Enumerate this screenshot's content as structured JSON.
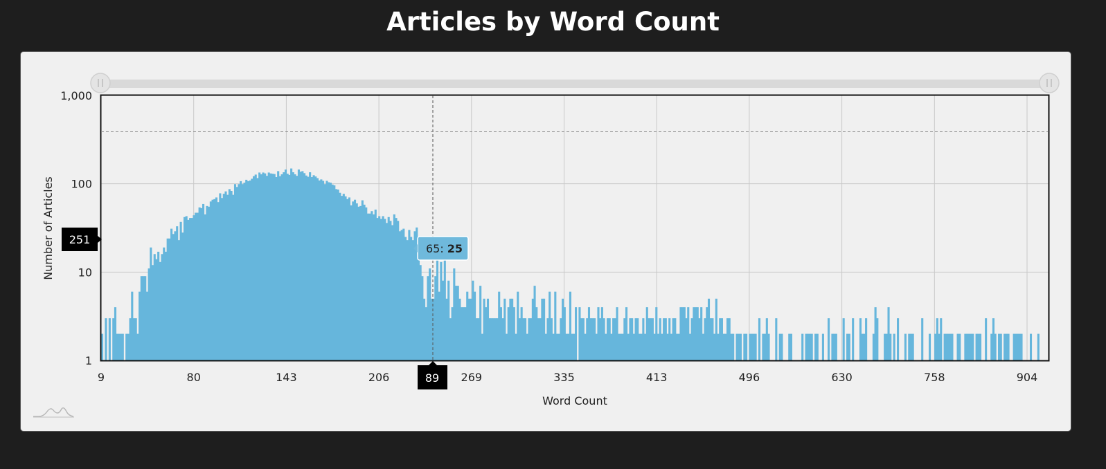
{
  "theme": {
    "page_bg": "#1e1e1e",
    "panel_bg": "#f0f0f0",
    "bar_color": "#66b6dc",
    "crosshair_label_bg": "#000000",
    "crosshair_label_text": "#ffffff"
  },
  "page": {
    "title": "Articles by Word Count"
  },
  "slider": {
    "left_handle": "range-start-handle",
    "right_handle": "range-end-handle"
  },
  "logo": {
    "icon": "chart-logo-icon"
  },
  "chart_data": {
    "type": "bar",
    "title": "Articles by Word Count",
    "xlabel": "Word Count",
    "ylabel": "Number of Articles",
    "y_scale": "log",
    "ylim": [
      1,
      1000
    ],
    "y_ticks": [
      "1",
      "10",
      "100",
      "1,000"
    ],
    "x_ticks": [
      "9",
      "80",
      "143",
      "206",
      "269",
      "335",
      "413",
      "496",
      "630",
      "758",
      "904"
    ],
    "grid": true,
    "legend": "none",
    "crosshair": {
      "y_label": "251",
      "x_label": "89",
      "tooltip_key": "65",
      "tooltip_value": "25",
      "tooltip_separator": ":"
    },
    "values": [
      2,
      1,
      3,
      1,
      3,
      1,
      3,
      4,
      2,
      2,
      2,
      2,
      1,
      2,
      2,
      3,
      6,
      3,
      3,
      2,
      6,
      9,
      9,
      9,
      6,
      11,
      19,
      12,
      16,
      14,
      17,
      13,
      16,
      19,
      17,
      24,
      24,
      31,
      27,
      29,
      33,
      23,
      37,
      28,
      42,
      43,
      39,
      41,
      41,
      44,
      47,
      47,
      54,
      53,
      59,
      45,
      56,
      55,
      63,
      66,
      67,
      70,
      62,
      78,
      69,
      77,
      82,
      75,
      87,
      83,
      75,
      99,
      92,
      99,
      107,
      99,
      103,
      111,
      107,
      109,
      114,
      122,
      127,
      116,
      134,
      128,
      134,
      131,
      123,
      134,
      131,
      130,
      129,
      119,
      139,
      122,
      128,
      135,
      145,
      130,
      126,
      149,
      135,
      128,
      123,
      145,
      137,
      139,
      132,
      124,
      120,
      135,
      119,
      125,
      121,
      116,
      109,
      112,
      108,
      99,
      108,
      104,
      103,
      98,
      96,
      87,
      86,
      79,
      73,
      77,
      72,
      67,
      70,
      57,
      63,
      66,
      60,
      55,
      56,
      65,
      58,
      54,
      46,
      46,
      49,
      45,
      51,
      41,
      43,
      40,
      43,
      40,
      36,
      42,
      38,
      34,
      45,
      41,
      38,
      29,
      30,
      31,
      25,
      23,
      30,
      25,
      23,
      29,
      32,
      19,
      12,
      9,
      5,
      4,
      9,
      11,
      5,
      5,
      9,
      14,
      6,
      13,
      8,
      16,
      5,
      8,
      3,
      4,
      11,
      7,
      7,
      5,
      4,
      4,
      4,
      6,
      5,
      5,
      8,
      6,
      3,
      3,
      7,
      2,
      5,
      4,
      5,
      3,
      3,
      3,
      3,
      3,
      6,
      4,
      3,
      5,
      2,
      4,
      5,
      5,
      4,
      2,
      6,
      3,
      4,
      3,
      3,
      2,
      3,
      3,
      5,
      7,
      4,
      3,
      3,
      5,
      5,
      2,
      3,
      6,
      3,
      2,
      6,
      2,
      2,
      3,
      5,
      4,
      2,
      2,
      6,
      2,
      2,
      4,
      1,
      4,
      3,
      3,
      2,
      3,
      4,
      3,
      3,
      3,
      2,
      4,
      3,
      4,
      3,
      2,
      3,
      3,
      2,
      3,
      3,
      4,
      2,
      2,
      2,
      3,
      4,
      2,
      3,
      3,
      2,
      3,
      3,
      2,
      2,
      3,
      2,
      4,
      3,
      3,
      3,
      2,
      4,
      2,
      3,
      2,
      3,
      3,
      2,
      3,
      2,
      3,
      3,
      2,
      2,
      4,
      4,
      4,
      3,
      4,
      2,
      3,
      4,
      4,
      4,
      3,
      4,
      2,
      3,
      4,
      5,
      3,
      3,
      2,
      5,
      2,
      3,
      3,
      2,
      2,
      3,
      3,
      2,
      2,
      1,
      2,
      2,
      2,
      1,
      2,
      2,
      1,
      2,
      2,
      2,
      2,
      1,
      3,
      1,
      2,
      2,
      3,
      2,
      1,
      1,
      1,
      3,
      1,
      2,
      2,
      1,
      1,
      1,
      2,
      2,
      1,
      1,
      1,
      1,
      1,
      2,
      1,
      2,
      2,
      2,
      2,
      1,
      2,
      2,
      1,
      1,
      2,
      1,
      1,
      3,
      1,
      2,
      2,
      2,
      1,
      1,
      1,
      3,
      1,
      2,
      2,
      1,
      3,
      1,
      1,
      1,
      3,
      2,
      2,
      3,
      1,
      1,
      1,
      2,
      4,
      3,
      1,
      1,
      1,
      2,
      2,
      4,
      2,
      1,
      2,
      1,
      3,
      1,
      1,
      1,
      2,
      1,
      2,
      2,
      2,
      1,
      1,
      1,
      1,
      3,
      1,
      1,
      1,
      2,
      1,
      1,
      2,
      3,
      2,
      3,
      1,
      2,
      2,
      2,
      2,
      2,
      1,
      1,
      2,
      2,
      1,
      1,
      2,
      2,
      2,
      2,
      2,
      1,
      2,
      2,
      2,
      1,
      1,
      3,
      1,
      1,
      2,
      3,
      2,
      1,
      2,
      2,
      1,
      2,
      2,
      2,
      1,
      1,
      2,
      2,
      2,
      2,
      2,
      1,
      1,
      1,
      1,
      2,
      1,
      1,
      1,
      2,
      1,
      1,
      1,
      1,
      1
    ]
  }
}
